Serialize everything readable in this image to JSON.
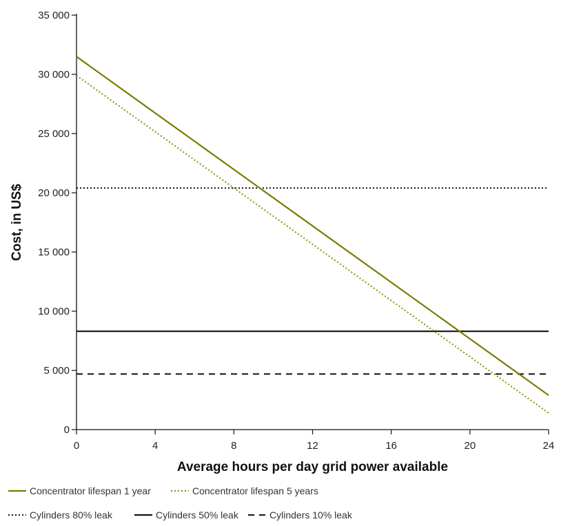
{
  "chart_data": {
    "type": "line",
    "xlabel": "Average hours per day grid power available",
    "ylabel": "Cost, in US$",
    "x_ticks": [
      0,
      4,
      8,
      12,
      16,
      20,
      24
    ],
    "x_tick_labels": [
      "0",
      "4",
      "8",
      "12",
      "16",
      "20",
      "24"
    ],
    "y_ticks": [
      0,
      5000,
      10000,
      15000,
      20000,
      25000,
      30000,
      35000
    ],
    "y_tick_labels": [
      "0",
      "5 000",
      "10 000",
      "15 000",
      "20 000",
      "25 000",
      "30 000",
      "35 000"
    ],
    "xlim": [
      0,
      24
    ],
    "ylim": [
      0,
      35000
    ],
    "grid": false,
    "legend_position": "bottom",
    "series": [
      {
        "name": "Concentrator lifespan 1 year",
        "x": [
          0,
          24
        ],
        "y": [
          31500,
          2900
        ],
        "color": "#7a7a00",
        "style": "solid"
      },
      {
        "name": "Concentrator lifespan 5 years",
        "x": [
          0,
          24
        ],
        "y": [
          29900,
          1400
        ],
        "color": "#8a8a10",
        "style": "dotted"
      },
      {
        "name": "Cylinders 80% leak",
        "x": [
          0,
          24
        ],
        "y": [
          20400,
          20400
        ],
        "color": "#111111",
        "style": "dotted"
      },
      {
        "name": "Cylinders 50% leak",
        "x": [
          0,
          24
        ],
        "y": [
          8300,
          8300
        ],
        "color": "#111111",
        "style": "solid"
      },
      {
        "name": "Cylinders 10% leak",
        "x": [
          0,
          24
        ],
        "y": [
          4700,
          4700
        ],
        "color": "#111111",
        "style": "dashed"
      }
    ]
  }
}
